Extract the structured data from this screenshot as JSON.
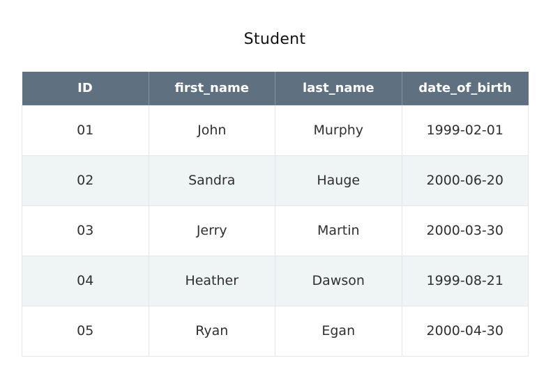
{
  "table_title": "Student",
  "columns": [
    "ID",
    "first_name",
    "last_name",
    "date_of_birth"
  ],
  "rows": [
    [
      "01",
      "John",
      "Murphy",
      "1999-02-01"
    ],
    [
      "02",
      "Sandra",
      "Hauge",
      "2000-06-20"
    ],
    [
      "03",
      "Jerry",
      "Martin",
      "2000-03-30"
    ],
    [
      "04",
      "Heather",
      "Dawson",
      "1999-08-21"
    ],
    [
      "05",
      "Ryan",
      "Egan",
      "2000-04-30"
    ]
  ],
  "colors": {
    "header_background": "#5f7080",
    "header_text": "#ffffff",
    "alternate_row": "#eff4f5",
    "border": "#e3e7ea"
  }
}
